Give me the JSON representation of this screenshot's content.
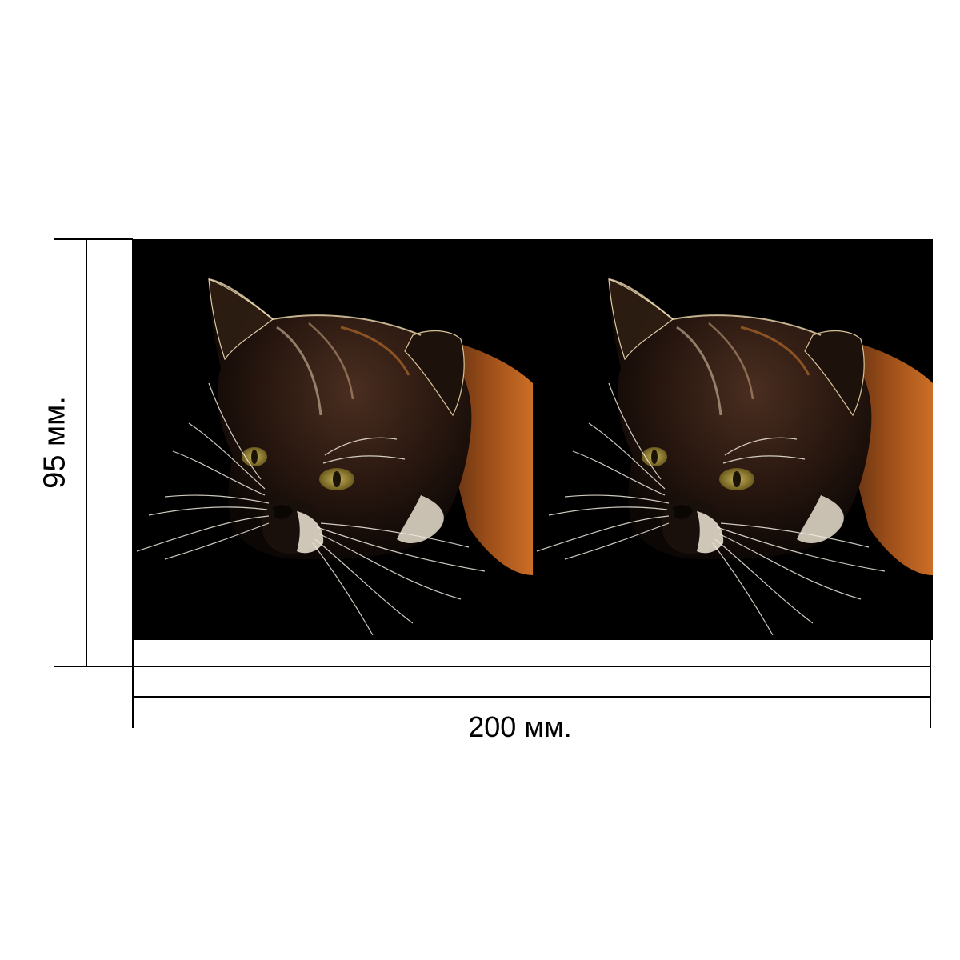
{
  "dimensions": {
    "width_label": "200 мм.",
    "height_label": "95 мм."
  },
  "print_image": {
    "panels": [
      {
        "subject": "cat-portrait",
        "position": "left"
      },
      {
        "subject": "cat-portrait",
        "position": "right"
      }
    ],
    "background_color": "#000000",
    "fur_colors": [
      "#c46a22",
      "#e9dcc8",
      "#3a2418"
    ],
    "eye_color": "#8f7d2e"
  }
}
